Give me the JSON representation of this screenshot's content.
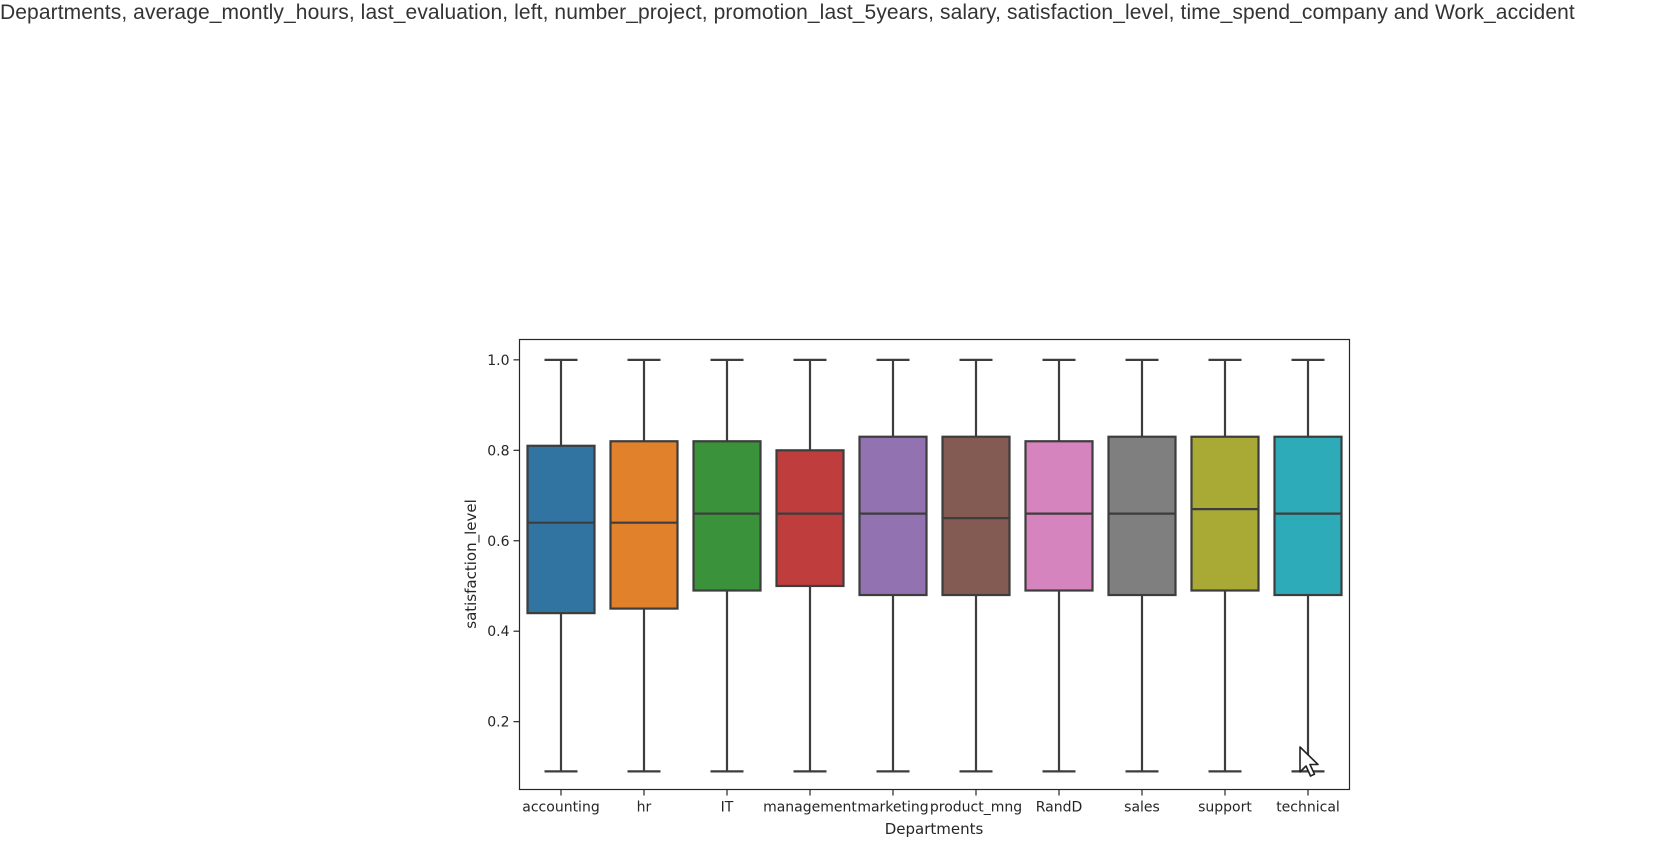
{
  "caption": "Departments, average_montly_hours, last_evaluation, left, number_project, promotion_last_5years, salary, satisfaction_level, time_spend_company and Work_accident",
  "chart_data": {
    "type": "box",
    "xlabel": "Departments",
    "ylabel": "satisfaction_level",
    "ylim": [
      0.05,
      1.045
    ],
    "y_ticks": [
      0.2,
      0.4,
      0.6,
      0.8,
      1.0
    ],
    "y_tick_labels": [
      "0.2",
      "0.4",
      "0.6",
      "0.8",
      "1.0"
    ],
    "grid": false,
    "categories": [
      "accounting",
      "hr",
      "IT",
      "management",
      "marketing",
      "product_mng",
      "RandD",
      "sales",
      "support",
      "technical"
    ],
    "series": [
      {
        "category": "accounting",
        "min": 0.09,
        "q1": 0.44,
        "median": 0.64,
        "q3": 0.81,
        "max": 1.0,
        "color": "#3274a1"
      },
      {
        "category": "hr",
        "min": 0.09,
        "q1": 0.45,
        "median": 0.64,
        "q3": 0.82,
        "max": 1.0,
        "color": "#e1812c"
      },
      {
        "category": "IT",
        "min": 0.09,
        "q1": 0.49,
        "median": 0.66,
        "q3": 0.82,
        "max": 1.0,
        "color": "#3a923a"
      },
      {
        "category": "management",
        "min": 0.09,
        "q1": 0.5,
        "median": 0.66,
        "q3": 0.8,
        "max": 1.0,
        "color": "#c03d3e"
      },
      {
        "category": "marketing",
        "min": 0.09,
        "q1": 0.48,
        "median": 0.66,
        "q3": 0.83,
        "max": 1.0,
        "color": "#9372b2"
      },
      {
        "category": "product_mng",
        "min": 0.09,
        "q1": 0.48,
        "median": 0.65,
        "q3": 0.83,
        "max": 1.0,
        "color": "#845b53"
      },
      {
        "category": "RandD",
        "min": 0.09,
        "q1": 0.49,
        "median": 0.66,
        "q3": 0.82,
        "max": 1.0,
        "color": "#d684bd"
      },
      {
        "category": "sales",
        "min": 0.09,
        "q1": 0.48,
        "median": 0.66,
        "q3": 0.83,
        "max": 1.0,
        "color": "#7f7f7f"
      },
      {
        "category": "support",
        "min": 0.09,
        "q1": 0.49,
        "median": 0.67,
        "q3": 0.83,
        "max": 1.0,
        "color": "#a9aa35"
      },
      {
        "category": "technical",
        "min": 0.09,
        "q1": 0.48,
        "median": 0.66,
        "q3": 0.83,
        "max": 1.0,
        "color": "#2eabb8"
      }
    ],
    "line_color": "#3d3d3d"
  },
  "cursor": {
    "icon": "mouse-pointer-icon"
  }
}
